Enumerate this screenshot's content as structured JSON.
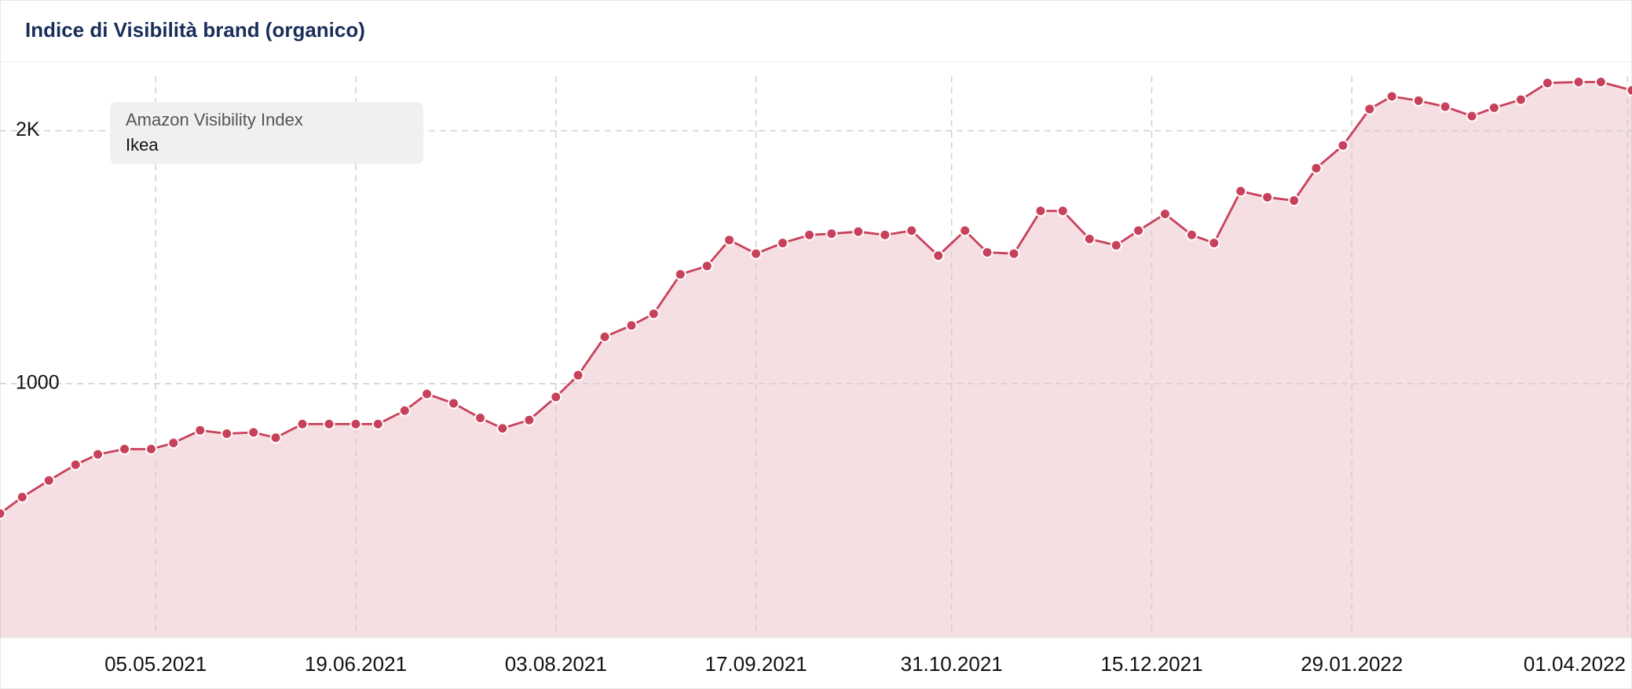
{
  "chart_data": {
    "type": "area",
    "title": "Indice di Visibilità brand (organico)",
    "legend_title": "Amazon Visibility Index",
    "x": [
      "31.03.2021",
      "05.04.2021",
      "11.04.2021",
      "17.04.2021",
      "22.04.2021",
      "28.04.2021",
      "04.05.2021",
      "09.05.2021",
      "15.05.2021",
      "21.05.2021",
      "27.05.2021",
      "01.06.2021",
      "07.06.2021",
      "13.06.2021",
      "19.06.2021",
      "24.06.2021",
      "30.06.2021",
      "05.07.2021",
      "11.07.2021",
      "17.07.2021",
      "22.07.2021",
      "28.07.2021",
      "03.08.2021",
      "08.08.2021",
      "14.08.2021",
      "20.08.2021",
      "25.08.2021",
      "31.08.2021",
      "06.09.2021",
      "11.09.2021",
      "17.09.2021",
      "23.09.2021",
      "29.09.2021",
      "04.10.2021",
      "10.10.2021",
      "16.10.2021",
      "22.10.2021",
      "28.10.2021",
      "03.11.2021",
      "08.11.2021",
      "14.11.2021",
      "20.11.2021",
      "25.11.2021",
      "01.12.2021",
      "07.12.2021",
      "12.12.2021",
      "18.12.2021",
      "24.12.2021",
      "29.12.2021",
      "04.01.2022",
      "10.01.2022",
      "16.01.2022",
      "21.01.2022",
      "27.01.2022",
      "02.02.2022",
      "07.02.2022",
      "13.02.2022",
      "19.02.2022",
      "25.02.2022",
      "02.03.2022",
      "08.03.2022",
      "14.03.2022",
      "21.03.2022",
      "26.03.2022",
      "02.04.2022"
    ],
    "series": [
      {
        "name": "Ikea",
        "color": "#c8415a",
        "values": [
          486,
          551,
          617,
          679,
          720,
          741,
          741,
          765,
          815,
          802,
          807,
          786,
          840,
          840,
          840,
          840,
          893,
          959,
          922,
          864,
          823,
          856,
          947,
          1033,
          1185,
          1230,
          1276,
          1432,
          1465,
          1568,
          1514,
          1556,
          1588,
          1593,
          1601,
          1588,
          1605,
          1506,
          1605,
          1519,
          1514,
          1683,
          1683,
          1572,
          1547,
          1605,
          1671,
          1588,
          1556,
          1761,
          1737,
          1724,
          1852,
          1942,
          2086,
          2136,
          2119,
          2095,
          2058,
          2091,
          2123,
          2189,
          2193,
          2193,
          2160
        ]
      }
    ],
    "xlim": [
      "31.03.2021",
      "02.04.2022"
    ],
    "xticks": [
      "05.05.2021",
      "19.06.2021",
      "03.08.2021",
      "17.09.2021",
      "31.10.2021",
      "15.12.2021",
      "29.01.2022",
      "01.04.2022"
    ],
    "ylim": [
      0,
      2272
    ],
    "yticks": [
      1000,
      {
        "value": 2000,
        "label": "2K"
      }
    ],
    "grid": true
  }
}
